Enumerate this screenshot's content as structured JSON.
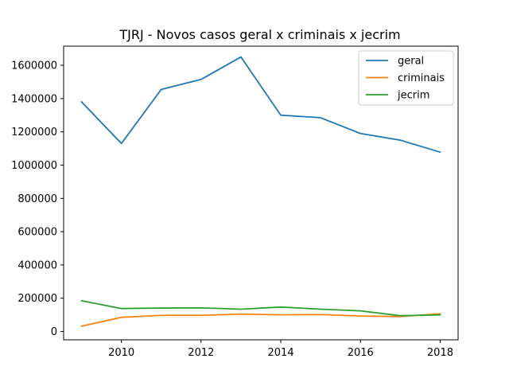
{
  "chart_data": {
    "type": "line",
    "title": "TJRJ - Novos casos geral x criminais x jecrim",
    "xlabel": "",
    "ylabel": "",
    "x": [
      2009,
      2010,
      2011,
      2012,
      2013,
      2014,
      2015,
      2016,
      2017,
      2018
    ],
    "xticks": [
      2010,
      2012,
      2014,
      2016,
      2018
    ],
    "yticks": [
      0,
      200000,
      400000,
      600000,
      800000,
      1000000,
      1200000,
      1400000,
      1600000
    ],
    "xlim": [
      2008.55,
      2018.45
    ],
    "ylim": [
      -50000,
      1715000
    ],
    "grid": false,
    "legend_position": "top-right",
    "series": [
      {
        "name": "geral",
        "color": "#1f77b4",
        "values": [
          1380000,
          1130000,
          1455000,
          1515000,
          1650000,
          1300000,
          1285000,
          1190000,
          1150000,
          1078000
        ]
      },
      {
        "name": "criminais",
        "color": "#ff7f0e",
        "values": [
          32000,
          85000,
          97000,
          97000,
          105000,
          100000,
          102000,
          93000,
          90000,
          107000
        ]
      },
      {
        "name": "jecrim",
        "color": "#2ca02c",
        "values": [
          185000,
          138000,
          141000,
          142000,
          134000,
          147000,
          134000,
          124000,
          95000,
          100000
        ]
      }
    ]
  }
}
